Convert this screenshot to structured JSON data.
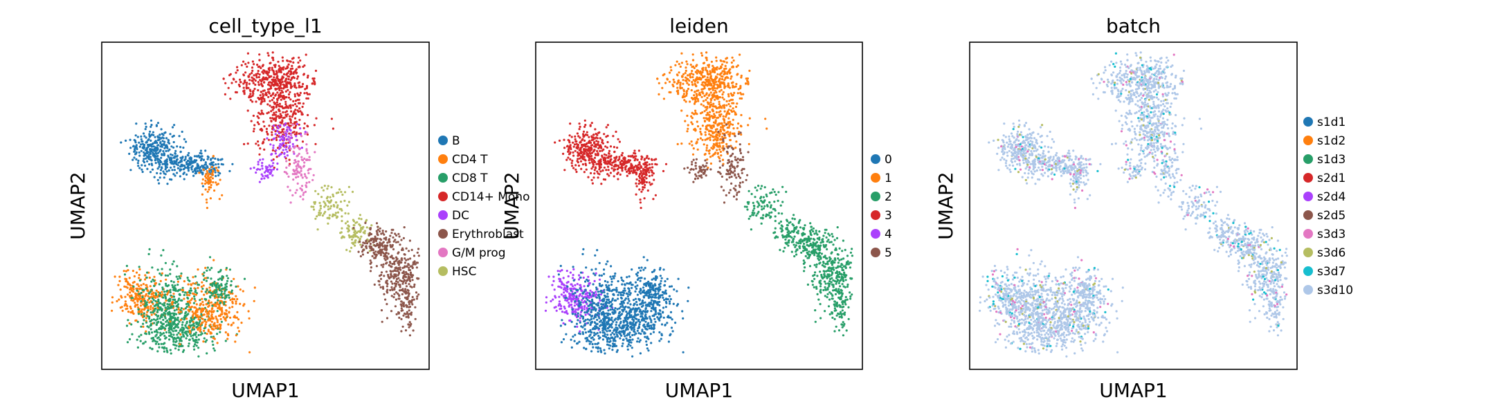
{
  "chart_data": [
    {
      "type": "scatter",
      "title": "cell_type_l1",
      "xlabel": "UMAP1",
      "ylabel": "UMAP2",
      "grid": false,
      "legend_position": "right",
      "series": [
        {
          "name": "B",
          "color": "#1f77b4"
        },
        {
          "name": "CD4 T",
          "color": "#ff7f0e"
        },
        {
          "name": "CD8 T",
          "color": "#279e68"
        },
        {
          "name": "CD14+ Mono",
          "color": "#d62728"
        },
        {
          "name": "DC",
          "color": "#aa40fc"
        },
        {
          "name": "Erythroblast",
          "color": "#8c564b"
        },
        {
          "name": "G/M prog",
          "color": "#e377c2"
        },
        {
          "name": "HSC",
          "color": "#b5bd61"
        }
      ]
    },
    {
      "type": "scatter",
      "title": "leiden",
      "xlabel": "UMAP1",
      "ylabel": "UMAP2",
      "grid": false,
      "legend_position": "right",
      "series": [
        {
          "name": "0",
          "color": "#1f77b4"
        },
        {
          "name": "1",
          "color": "#ff7f0e"
        },
        {
          "name": "2",
          "color": "#279e68"
        },
        {
          "name": "3",
          "color": "#d62728"
        },
        {
          "name": "4",
          "color": "#aa40fc"
        },
        {
          "name": "5",
          "color": "#8c564b"
        }
      ]
    },
    {
      "type": "scatter",
      "title": "batch",
      "xlabel": "UMAP1",
      "ylabel": "UMAP2",
      "grid": false,
      "legend_position": "right",
      "series": [
        {
          "name": "s1d1",
          "color": "#1f77b4"
        },
        {
          "name": "s1d2",
          "color": "#ff7f0e"
        },
        {
          "name": "s1d3",
          "color": "#279e68"
        },
        {
          "name": "s2d1",
          "color": "#d62728"
        },
        {
          "name": "s2d4",
          "color": "#aa40fc"
        },
        {
          "name": "s2d5",
          "color": "#8c564b"
        },
        {
          "name": "s3d3",
          "color": "#e377c2"
        },
        {
          "name": "s3d6",
          "color": "#b5bd61"
        },
        {
          "name": "s3d7",
          "color": "#17becf"
        },
        {
          "name": "s3d10",
          "color": "#aec7e8"
        }
      ]
    }
  ]
}
